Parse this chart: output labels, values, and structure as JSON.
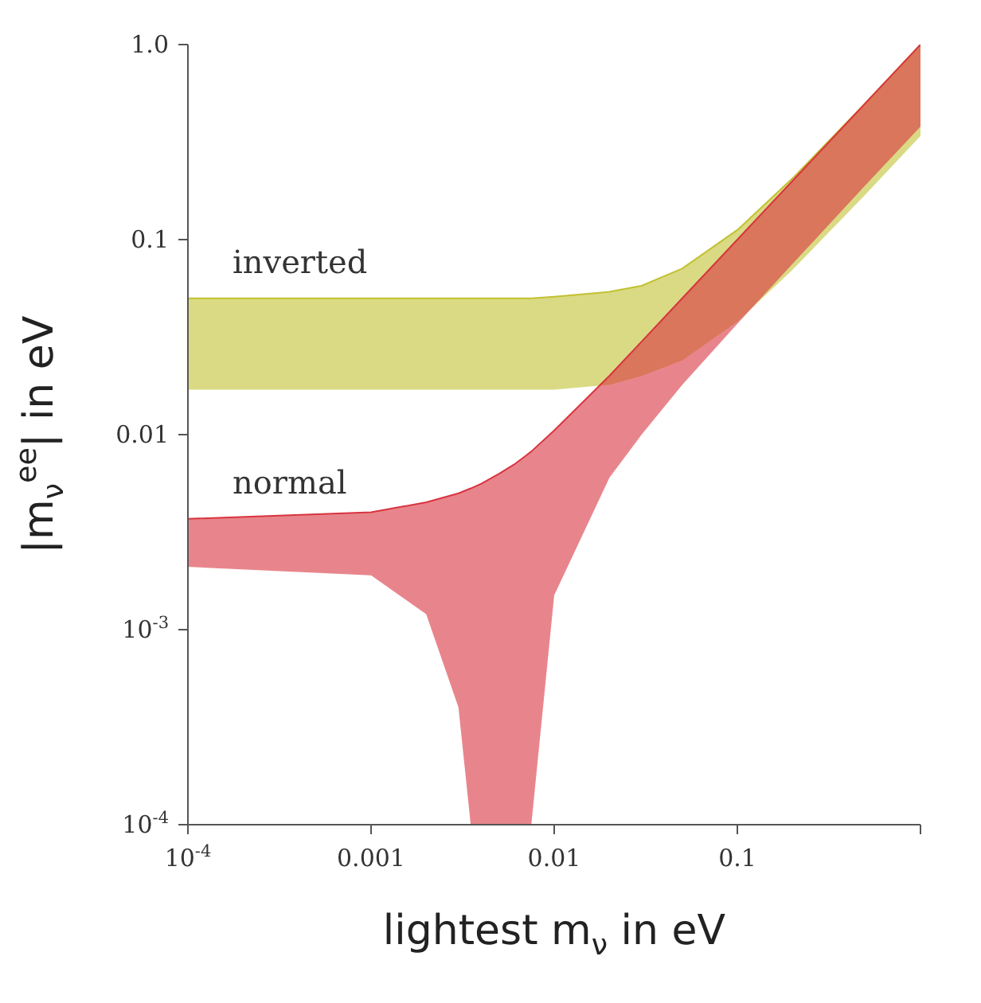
{
  "chart_data": {
    "type": "line",
    "xlabel": "lightest m$_{ν}$ in eV",
    "ylabel": "|m$_{ν}$$^{ee}$| in eV",
    "log": "xy",
    "grid": false,
    "legend": false,
    "marker": "none",
    "x": [
      0.0001,
      0.001,
      0.002,
      0.003,
      0.0035,
      0.004,
      0.005,
      0.006,
      0.007,
      0.0075,
      0.01,
      0.02,
      0.03,
      0.05,
      0.1,
      0.2,
      0.5,
      1
    ],
    "xlim": [
      0.0001,
      1
    ],
    "xticks": [
      {
        "value": 0.0001,
        "label": "10$^{-4}$"
      },
      0.001,
      0.01,
      0.1,
      {
        "value": 1,
        "label": null
      }
    ],
    "ylim": [
      0.0001,
      1
    ],
    "yticks": [
      {
        "value": 0.0001,
        "label": "10$^{-4}$"
      },
      {
        "value": 0.001,
        "label": "10$^{-3}$"
      },
      0.01,
      0.1,
      {
        "value": 1,
        "label": "1.0"
      }
    ],
    "series": [
      {
        "name": "inverted",
        "color": "#c2c132",
        "values": [
          0.05,
          0.05,
          0.05,
          0.05,
          0.05,
          0.05,
          0.05,
          0.05,
          0.05,
          0.05,
          0.051,
          0.054,
          0.058,
          0.071,
          0.112,
          0.206,
          0.5,
          1
        ],
        "upper": [
          0.05,
          0.05,
          0.05,
          0.05,
          0.05,
          0.05,
          0.05,
          0.05,
          0.05,
          0.05,
          0.051,
          0.054,
          0.058,
          0.071,
          0.112,
          0.206,
          0.5,
          1
        ],
        "lower": [
          0.017,
          0.017,
          0.017,
          0.017,
          0.017,
          0.017,
          0.017,
          0.017,
          0.017,
          0.017,
          0.017,
          0.018,
          0.02,
          0.024,
          0.038,
          0.07,
          0.17,
          0.34
        ]
      },
      {
        "name": "normal",
        "color": "#d8343f",
        "values": [
          0.0037,
          0.004,
          0.0045,
          0.005,
          0.0053,
          0.0056,
          0.0063,
          0.007,
          0.0078,
          0.0082,
          0.0105,
          0.02,
          0.03,
          0.05,
          0.1,
          0.2,
          0.5,
          1
        ],
        "upper": [
          0.0037,
          0.004,
          0.0045,
          0.005,
          0.0053,
          0.0056,
          0.0063,
          0.007,
          0.0078,
          0.0082,
          0.0105,
          0.02,
          0.03,
          0.05,
          0.1,
          0.2,
          0.5,
          1
        ],
        "lower": [
          0.0021,
          0.0019,
          0.0012,
          0.0004,
          0.0001,
          0.0001,
          0.0001,
          0.0001,
          0.0001,
          0.0001,
          0.0015,
          0.006,
          0.01,
          0.018,
          0.037,
          0.075,
          0.19,
          0.38
        ]
      }
    ]
  }
}
